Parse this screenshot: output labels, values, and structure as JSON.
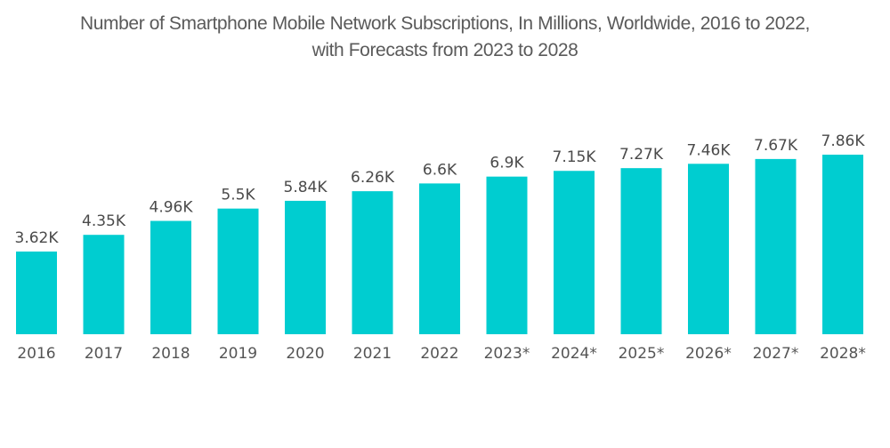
{
  "chart_data": {
    "type": "bar",
    "title_lines": [
      "Number of Smartphone Mobile Network Subscriptions, In Millions, Worldwide, 2016 to 2022,",
      "with Forecasts from 2023 to 2028"
    ],
    "categories": [
      "2016",
      "2017",
      "2018",
      "2019",
      "2020",
      "2021",
      "2022",
      "2023*",
      "2024*",
      "2025*",
      "2026*",
      "2027*",
      "2028*"
    ],
    "values": [
      3620,
      4350,
      4960,
      5500,
      5840,
      6260,
      6600,
      6900,
      7150,
      7270,
      7460,
      7670,
      7860
    ],
    "value_labels": [
      "3.62K",
      "4.35K",
      "4.96K",
      "5.5K",
      "5.84K",
      "6.26K",
      "6.6K",
      "6.9K",
      "7.15K",
      "7.27K",
      "7.46K",
      "7.67K",
      "7.86K"
    ],
    "xlabel": "",
    "ylabel": "",
    "ylim": [
      0,
      8000
    ],
    "grid": false,
    "legend": "none",
    "bar_color": "#00CDD0"
  }
}
